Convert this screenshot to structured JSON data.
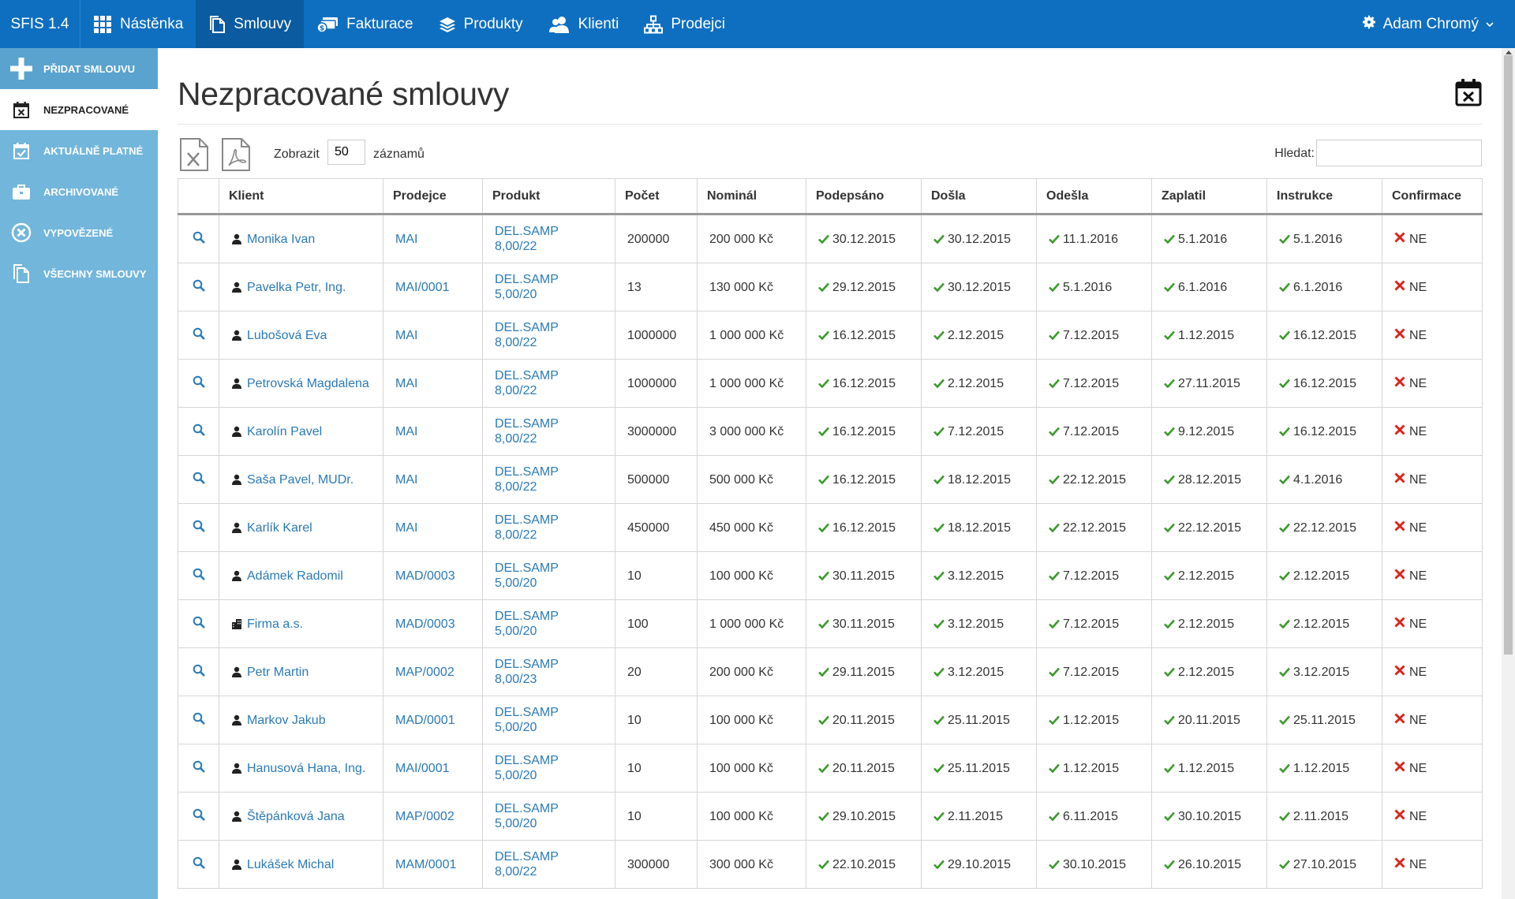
{
  "app": {
    "brand": "SFIS 1.4"
  },
  "nav": [
    {
      "id": "dashboard",
      "label": "Nástěnka",
      "icon": "grid-icon",
      "active": false
    },
    {
      "id": "contracts",
      "label": "Smlouvy",
      "icon": "document-icon",
      "active": true
    },
    {
      "id": "invoices",
      "label": "Fakturace",
      "icon": "money-icon",
      "active": false
    },
    {
      "id": "products",
      "label": "Produkty",
      "icon": "layers-icon",
      "active": false
    },
    {
      "id": "clients",
      "label": "Klienti",
      "icon": "users-icon",
      "active": false
    },
    {
      "id": "sellers",
      "label": "Prodejci",
      "icon": "hierarchy-icon",
      "active": false
    }
  ],
  "user": {
    "name": "Adam Chromý"
  },
  "sidebar": [
    {
      "id": "add",
      "label": "PŘIDAT SMLOUVU",
      "icon": "plus-icon"
    },
    {
      "id": "unprocessed",
      "label": "NEZPRACOVANÉ",
      "icon": "calendar-x-icon"
    },
    {
      "id": "valid",
      "label": "AKTUÁLNĚ PLATNÉ",
      "icon": "calendar-check-icon"
    },
    {
      "id": "archived",
      "label": "ARCHIVOVANÉ",
      "icon": "briefcase-icon"
    },
    {
      "id": "terminated",
      "label": "VYPOVĚZENÉ",
      "icon": "circle-x-icon"
    },
    {
      "id": "all",
      "label": "VŠECHNY SMLOUVY",
      "icon": "document-icon"
    }
  ],
  "page": {
    "title": "Nezpracované smlouvy"
  },
  "toolbar": {
    "show_label": "Zobrazit",
    "page_size": "50",
    "show_suffix": "záznamů",
    "search_label": "Hledat:",
    "search_value": ""
  },
  "table": {
    "headers": [
      "",
      "Klient",
      "Prodejce",
      "Produkt",
      "Počet",
      "Nominál",
      "Podepsáno",
      "Došla",
      "Odešla",
      "Zaplatil",
      "Instrukce",
      "Confirmace"
    ],
    "rows": [
      {
        "client": "Monika Ivan",
        "type": "person",
        "seller": "MAI",
        "product": [
          "DEL.SAMP",
          "8,00/22"
        ],
        "count": "200000",
        "nominal": "200 000 Kč",
        "signed": "30.12.2015",
        "arrived": "30.12.2015",
        "sent": "11.1.2016",
        "paid": "5.1.2016",
        "instruction": "5.1.2016",
        "confirm": "NE"
      },
      {
        "client": "Pavelka Petr, Ing.",
        "type": "person",
        "seller": "MAI/0001",
        "product": [
          "DEL.SAMP",
          "5,00/20"
        ],
        "count": "13",
        "nominal": "130 000 Kč",
        "signed": "29.12.2015",
        "arrived": "30.12.2015",
        "sent": "5.1.2016",
        "paid": "6.1.2016",
        "instruction": "6.1.2016",
        "confirm": "NE"
      },
      {
        "client": "Lubošová Eva",
        "type": "person",
        "seller": "MAI",
        "product": [
          "DEL.SAMP",
          "8,00/22"
        ],
        "count": "1000000",
        "nominal": "1 000 000 Kč",
        "signed": "16.12.2015",
        "arrived": "2.12.2015",
        "sent": "7.12.2015",
        "paid": "1.12.2015",
        "instruction": "16.12.2015",
        "confirm": "NE"
      },
      {
        "client": "Petrovská Magdalena",
        "type": "person",
        "seller": "MAI",
        "product": [
          "DEL.SAMP",
          "8,00/22"
        ],
        "count": "1000000",
        "nominal": "1 000 000 Kč",
        "signed": "16.12.2015",
        "arrived": "2.12.2015",
        "sent": "7.12.2015",
        "paid": "27.11.2015",
        "instruction": "16.12.2015",
        "confirm": "NE"
      },
      {
        "client": "Karolín Pavel",
        "type": "person",
        "seller": "MAI",
        "product": [
          "DEL.SAMP",
          "8,00/22"
        ],
        "count": "3000000",
        "nominal": "3 000 000 Kč",
        "signed": "16.12.2015",
        "arrived": "7.12.2015",
        "sent": "7.12.2015",
        "paid": "9.12.2015",
        "instruction": "16.12.2015",
        "confirm": "NE"
      },
      {
        "client": "Saša Pavel, MUDr.",
        "type": "person",
        "seller": "MAI",
        "product": [
          "DEL.SAMP",
          "8,00/22"
        ],
        "count": "500000",
        "nominal": "500 000 Kč",
        "signed": "16.12.2015",
        "arrived": "18.12.2015",
        "sent": "22.12.2015",
        "paid": "28.12.2015",
        "instruction": "4.1.2016",
        "confirm": "NE"
      },
      {
        "client": "Karlík Karel",
        "type": "person",
        "seller": "MAI",
        "product": [
          "DEL.SAMP",
          "8,00/22"
        ],
        "count": "450000",
        "nominal": "450 000 Kč",
        "signed": "16.12.2015",
        "arrived": "18.12.2015",
        "sent": "22.12.2015",
        "paid": "22.12.2015",
        "instruction": "22.12.2015",
        "confirm": "NE"
      },
      {
        "client": "Adámek Radomil",
        "type": "person",
        "seller": "MAD/0003",
        "product": [
          "DEL.SAMP",
          "5,00/20"
        ],
        "count": "10",
        "nominal": "100 000 Kč",
        "signed": "30.11.2015",
        "arrived": "3.12.2015",
        "sent": "7.12.2015",
        "paid": "2.12.2015",
        "instruction": "2.12.2015",
        "confirm": "NE"
      },
      {
        "client": "Firma a.s.",
        "type": "company",
        "seller": "MAD/0003",
        "product": [
          "DEL.SAMP",
          "5,00/20"
        ],
        "count": "100",
        "nominal": "1 000 000 Kč",
        "signed": "30.11.2015",
        "arrived": "3.12.2015",
        "sent": "7.12.2015",
        "paid": "2.12.2015",
        "instruction": "2.12.2015",
        "confirm": "NE"
      },
      {
        "client": "Petr Martin",
        "type": "person",
        "seller": "MAP/0002",
        "product": [
          "DEL.SAMP",
          "8,00/23"
        ],
        "count": "20",
        "nominal": "200 000 Kč",
        "signed": "29.11.2015",
        "arrived": "3.12.2015",
        "sent": "7.12.2015",
        "paid": "2.12.2015",
        "instruction": "3.12.2015",
        "confirm": "NE"
      },
      {
        "client": "Markov Jakub",
        "type": "person",
        "seller": "MAD/0001",
        "product": [
          "DEL.SAMP",
          "5,00/20"
        ],
        "count": "10",
        "nominal": "100 000 Kč",
        "signed": "20.11.2015",
        "arrived": "25.11.2015",
        "sent": "1.12.2015",
        "paid": "20.11.2015",
        "instruction": "25.11.2015",
        "confirm": "NE"
      },
      {
        "client": "Hanusová Hana, Ing.",
        "type": "person",
        "seller": "MAI/0001",
        "product": [
          "DEL.SAMP",
          "5,00/20"
        ],
        "count": "10",
        "nominal": "100 000 Kč",
        "signed": "20.11.2015",
        "arrived": "25.11.2015",
        "sent": "1.12.2015",
        "paid": "1.12.2015",
        "instruction": "1.12.2015",
        "confirm": "NE"
      },
      {
        "client": "Štěpánková Jana",
        "type": "person",
        "seller": "MAP/0002",
        "product": [
          "DEL.SAMP",
          "5,00/20"
        ],
        "count": "10",
        "nominal": "100 000 Kč",
        "signed": "29.10.2015",
        "arrived": "2.11.2015",
        "sent": "6.11.2015",
        "paid": "30.10.2015",
        "instruction": "2.11.2015",
        "confirm": "NE"
      },
      {
        "client": "Lukášek Michal",
        "type": "person",
        "seller": "MAM/0001",
        "product": [
          "DEL.SAMP",
          "8,00/22"
        ],
        "count": "300000",
        "nominal": "300 000 Kč",
        "signed": "22.10.2015",
        "arrived": "29.10.2015",
        "sent": "30.10.2015",
        "paid": "26.10.2015",
        "instruction": "27.10.2015",
        "confirm": "NE"
      }
    ]
  },
  "colors": {
    "navbar": "#0e6fc0",
    "navbar_active": "#0a5ba0",
    "sidebar": "#72b6db",
    "link": "#2a7ab8",
    "check": "#3a9b2a",
    "cross": "#d9261c"
  }
}
